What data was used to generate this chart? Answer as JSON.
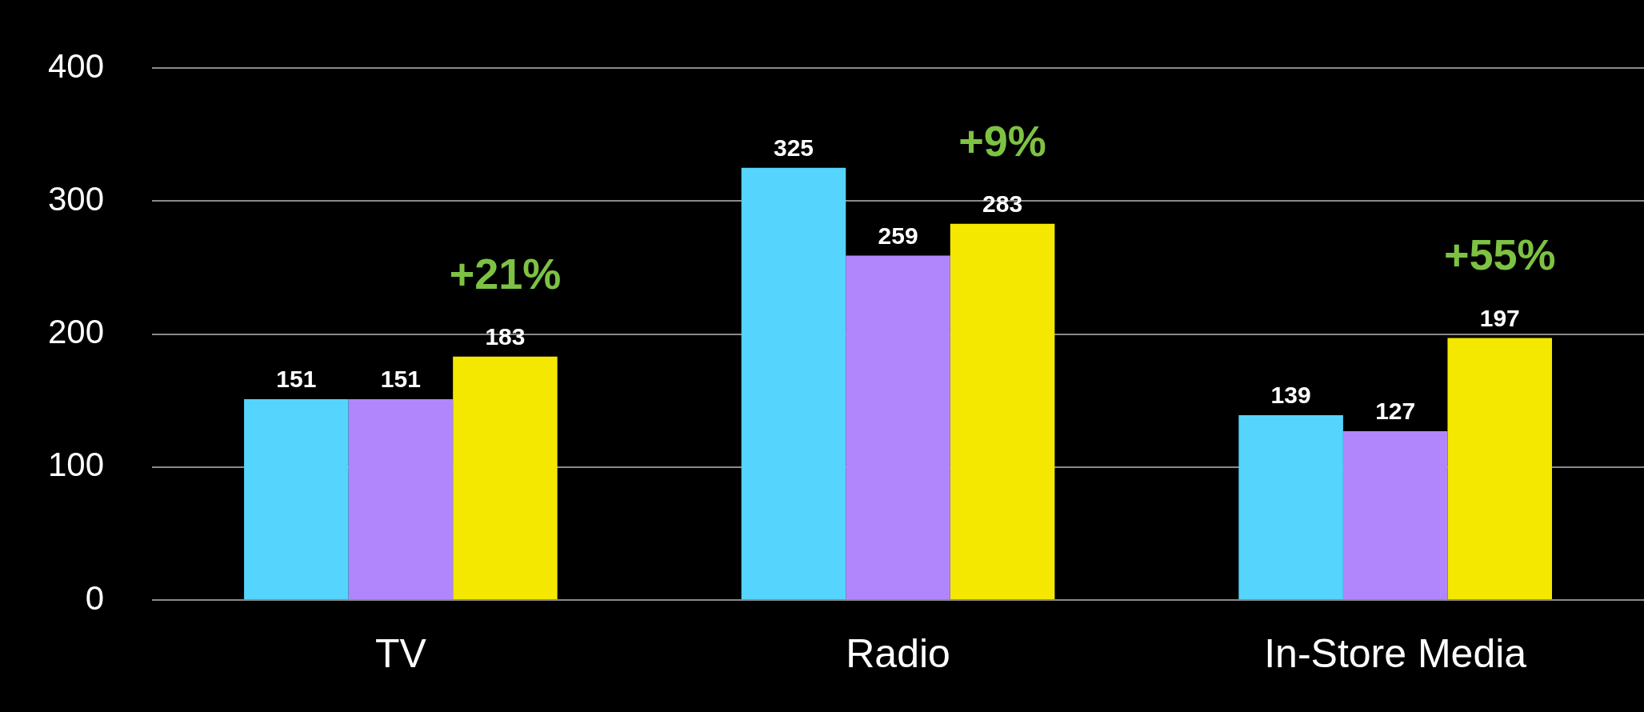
{
  "chart_data": {
    "type": "bar",
    "categories": [
      "TV",
      "Radio",
      "In-Store Media"
    ],
    "series": [
      {
        "color": "#55d4fd",
        "values": [
          151,
          325,
          139
        ]
      },
      {
        "color": "#b186fd",
        "values": [
          151,
          259,
          127
        ]
      },
      {
        "color": "#f4e800",
        "values": [
          183,
          283,
          197
        ]
      }
    ],
    "ylim": [
      0,
      400
    ],
    "yticks": [
      0,
      100,
      200,
      300,
      400
    ],
    "grid": "y",
    "legend": false,
    "data_labels": true,
    "annotations": [
      "+21%",
      "+9%",
      "+55%"
    ]
  }
}
